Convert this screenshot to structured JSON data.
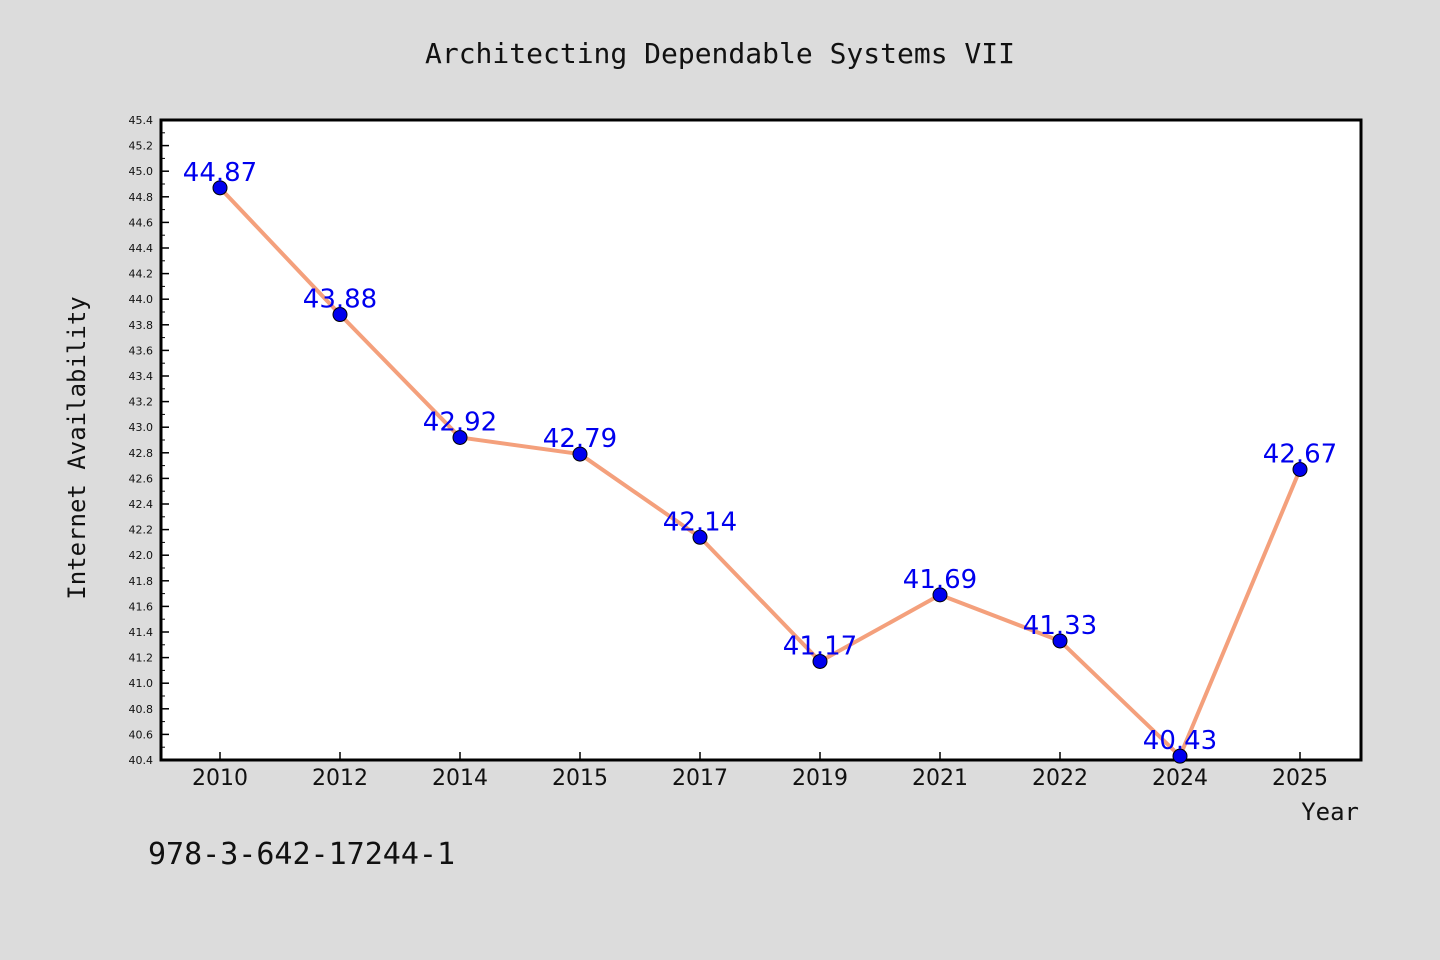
{
  "chart_data": {
    "type": "line",
    "title": "Architecting Dependable Systems VII",
    "xlabel": "Year",
    "ylabel": "Internet Availability",
    "categories": [
      "2010",
      "2012",
      "2014",
      "2015",
      "2017",
      "2019",
      "2021",
      "2022",
      "2024",
      "2025"
    ],
    "series": [
      {
        "values": [
          44.87,
          43.88,
          42.92,
          42.79,
          42.14,
          41.17,
          41.69,
          41.33,
          40.43,
          42.67
        ],
        "labels": [
          "44.87",
          "43.88",
          "42.92",
          "42.79",
          "42.14",
          "41.17",
          "41.69",
          "41.33",
          "40.43",
          "42.67"
        ]
      }
    ],
    "ylim": [
      40.4,
      45.4
    ],
    "yticks": [
      "40.4",
      "40.6",
      "40.8",
      "41.0",
      "41.2",
      "41.4",
      "41.6",
      "41.8",
      "42.0",
      "42.2",
      "42.4",
      "42.6",
      "42.8",
      "43.0",
      "43.2",
      "43.4",
      "43.6",
      "43.8",
      "44.0",
      "44.2",
      "44.4",
      "44.6",
      "44.8",
      "45.0",
      "45.2",
      "45.4"
    ],
    "grid": false,
    "legend": "none"
  },
  "footer": {
    "text": "978-3-642-17244-1"
  },
  "colors": {
    "background": "#dcdcdc",
    "plot_background": "#ffffff",
    "line": "#f4a07c",
    "marker": "#0000ee",
    "data_label": "#0000ee"
  }
}
